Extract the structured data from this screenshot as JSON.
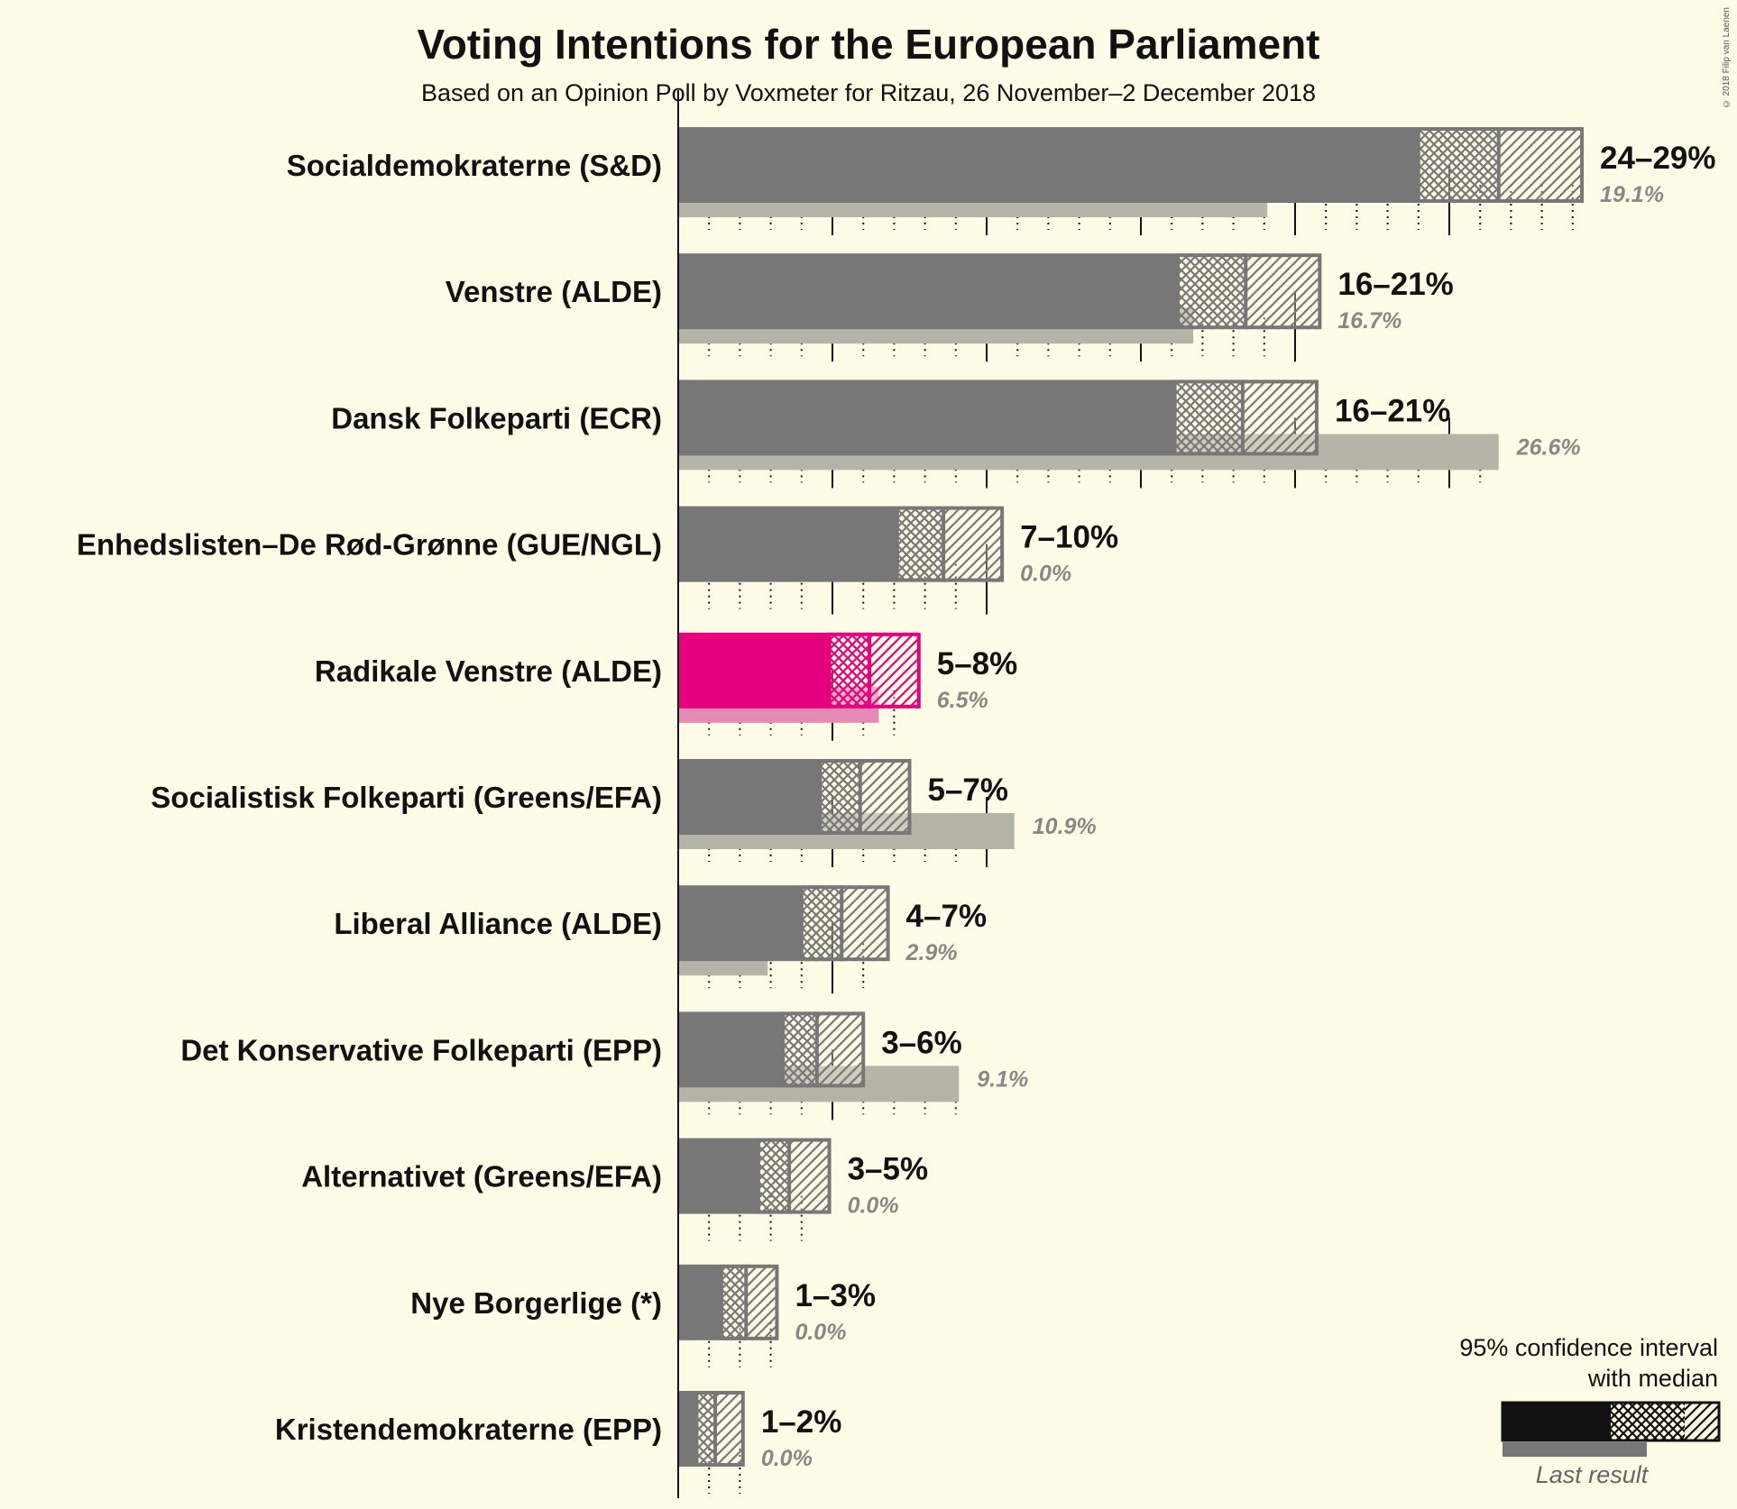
{
  "chart_data": {
    "type": "bar",
    "title": "Voting Intentions for the European Parliament",
    "subtitle": "Based on an Opinion Poll by Voxmeter for Ritzau, 26 November–2 December 2018",
    "copyright": "© 2018 Filip van Laenen",
    "xlim": [
      0,
      30
    ],
    "categories": [
      "Socialdemokraterne (S&D)",
      "Venstre (ALDE)",
      "Dansk Folkeparti (ECR)",
      "Enhedslisten–De Rød-Grønne (GUE/NGL)",
      "Radikale Venstre (ALDE)",
      "Socialistisk Folkeparti (Greens/EFA)",
      "Liberal Alliance (ALDE)",
      "Det Konservative Folkeparti (EPP)",
      "Alternativet (Greens/EFA)",
      "Nye Borgerlige (*)",
      "Kristendemokraterne (EPP)"
    ],
    "series": [
      {
        "name": "ci_low",
        "values": [
          24.0,
          16.2,
          16.1,
          7.1,
          4.9,
          4.6,
          4.0,
          3.4,
          2.6,
          1.4,
          0.6
        ]
      },
      {
        "name": "median",
        "values": [
          26.6,
          18.4,
          18.3,
          8.6,
          6.2,
          5.9,
          5.3,
          4.5,
          3.6,
          2.2,
          1.2
        ]
      },
      {
        "name": "ci_high",
        "values": [
          29.3,
          20.8,
          20.7,
          10.5,
          7.8,
          7.5,
          6.8,
          6.0,
          4.9,
          3.2,
          2.1
        ]
      },
      {
        "name": "last_result",
        "values": [
          19.1,
          16.7,
          26.6,
          0.0,
          6.5,
          10.9,
          2.9,
          9.1,
          0.0,
          0.0,
          0.0
        ]
      }
    ],
    "range_labels": [
      "24–29%",
      "16–21%",
      "16–21%",
      "7–10%",
      "5–8%",
      "5–7%",
      "4–7%",
      "3–6%",
      "3–5%",
      "1–3%",
      "1–2%"
    ],
    "last_labels": [
      "19.1%",
      "16.7%",
      "26.6%",
      "0.0%",
      "6.5%",
      "10.9%",
      "2.9%",
      "9.1%",
      "0.0%",
      "0.0%",
      "0.0%"
    ],
    "highlight_index": 4,
    "colors": {
      "bar": "#777777",
      "bar_border": "#777777",
      "last": "#B5B4A8",
      "highlight": "#E5007D",
      "highlight_last": "#E58AB4",
      "background": "#FEFBE6"
    },
    "legend": {
      "title_line1": "95% confidence interval",
      "title_line2": "with median",
      "last_label": "Last result",
      "position": "bottom-right"
    }
  }
}
